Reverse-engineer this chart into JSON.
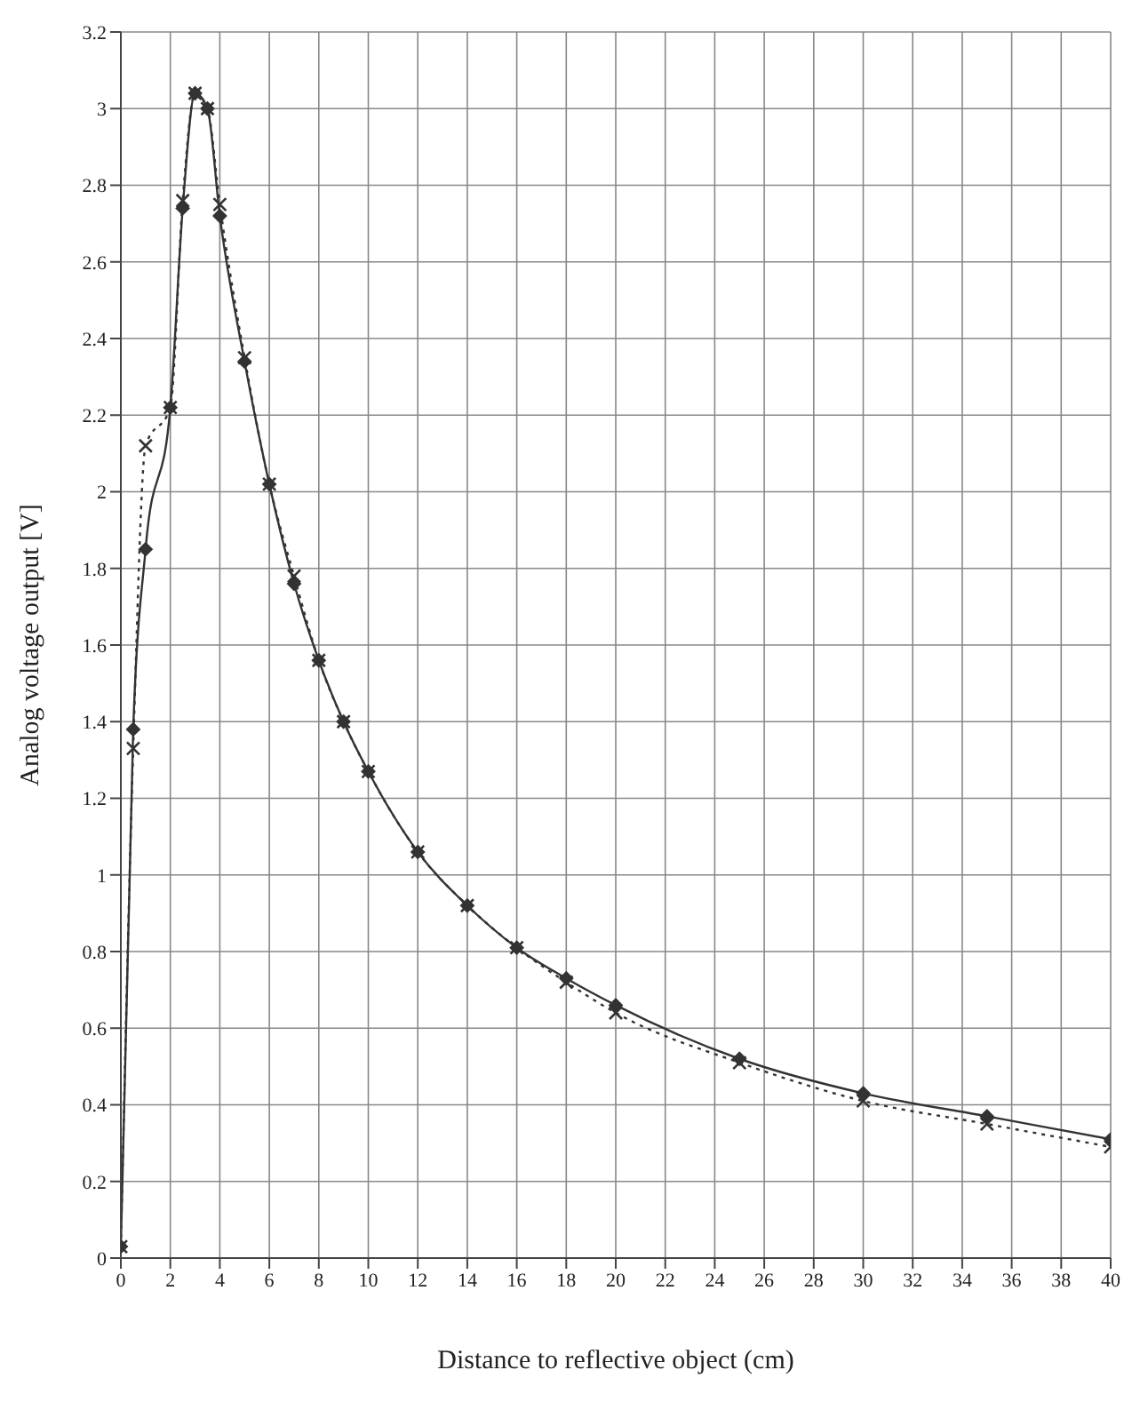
{
  "chart_data": {
    "type": "line",
    "xlabel": "Distance to reflective object   (cm)",
    "ylabel": "Analog voltage output [V]",
    "x": [
      0,
      0.5,
      1,
      2,
      2.5,
      3,
      3.5,
      4,
      5,
      6,
      7,
      8,
      9,
      10,
      12,
      14,
      16,
      18,
      20,
      25,
      30,
      35,
      40
    ],
    "series": [
      {
        "color": "#333333",
        "marker": "diamond",
        "line_style": "solid",
        "values": [
          0.03,
          1.38,
          1.85,
          2.22,
          2.74,
          3.04,
          3.0,
          2.72,
          2.34,
          2.02,
          1.76,
          1.56,
          1.4,
          1.27,
          1.06,
          0.92,
          0.81,
          0.73,
          0.66,
          0.52,
          0.43,
          0.37,
          0.31
        ]
      },
      {
        "color": "#333333",
        "marker": "cross",
        "line_style": "dotted",
        "values": [
          0.03,
          1.33,
          2.12,
          2.22,
          2.76,
          3.04,
          3.0,
          2.75,
          2.35,
          2.02,
          1.78,
          1.56,
          1.4,
          1.27,
          1.06,
          0.92,
          0.81,
          0.72,
          0.64,
          0.51,
          0.41,
          0.35,
          0.29
        ]
      }
    ],
    "xlim": [
      0,
      40
    ],
    "xticks": [
      0,
      2,
      4,
      6,
      8,
      10,
      12,
      14,
      16,
      18,
      20,
      22,
      24,
      26,
      28,
      30,
      32,
      34,
      36,
      38,
      40
    ],
    "ylim": [
      0,
      3.2
    ],
    "yticks": [
      0,
      0.2,
      0.4,
      0.6,
      0.8,
      1,
      1.2,
      1.4,
      1.6,
      1.8,
      2,
      2.2,
      2.4,
      2.6,
      2.8,
      3,
      3.2
    ],
    "grid": true
  }
}
